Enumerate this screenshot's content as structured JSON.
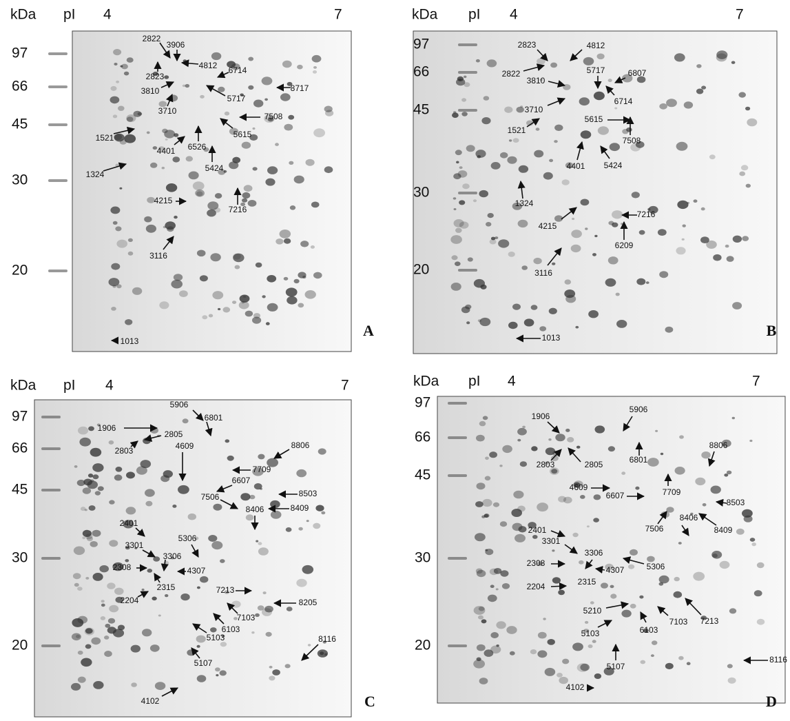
{
  "panels": [
    {
      "letter": "A",
      "header": {
        "unit": "kDa",
        "pi": "pI",
        "ph_low": "4",
        "ph_high": "7"
      },
      "mw": [
        "97",
        "66",
        "45",
        "30",
        "20"
      ],
      "spots": [
        "2822",
        "3906",
        "4812",
        "6714",
        "2823",
        "8717",
        "3810",
        "5717",
        "3710",
        "7508",
        "5615",
        "1521",
        "4401",
        "6526",
        "5424",
        "1324",
        "4215",
        "7216",
        "3116",
        "1013"
      ]
    },
    {
      "letter": "B",
      "header": {
        "unit": "kDa",
        "pi": "pI",
        "ph_low": "4",
        "ph_high": "7"
      },
      "mw": [
        "97",
        "66",
        "45",
        "30",
        "20"
      ],
      "spots": [
        "2823",
        "4812",
        "2822",
        "3810",
        "5717",
        "6807",
        "6714",
        "3710",
        "5615",
        "7508",
        "1521",
        "4401",
        "5424",
        "1324",
        "4215",
        "7216",
        "6209",
        "3116",
        "1013"
      ]
    },
    {
      "letter": "C",
      "header": {
        "unit": "kDa",
        "pi": "pI",
        "ph_low": "4",
        "ph_high": "7"
      },
      "mw": [
        "97",
        "66",
        "45",
        "30",
        "20"
      ],
      "spots": [
        "5906",
        "6801",
        "1906",
        "2805",
        "2803",
        "8806",
        "4609",
        "7709",
        "6607",
        "8503",
        "7506",
        "8406",
        "8409",
        "2401",
        "5306",
        "3301",
        "3306",
        "2308",
        "4307",
        "2315",
        "2204",
        "7213",
        "8205",
        "7103",
        "6103",
        "5103",
        "8116",
        "5107",
        "4102"
      ]
    },
    {
      "letter": "D",
      "header": {
        "unit": "kDa",
        "pi": "pI",
        "ph_low": "4",
        "ph_high": "7"
      },
      "mw": [
        "97",
        "66",
        "45",
        "30",
        "20"
      ],
      "spots": [
        "1906",
        "5906",
        "8806",
        "2803",
        "2805",
        "6801",
        "7709",
        "4609",
        "6607",
        "8503",
        "7506",
        "8406",
        "8409",
        "2401",
        "3301",
        "3306",
        "5306",
        "2308",
        "4307",
        "2315",
        "2204",
        "5210",
        "7213",
        "7103",
        "6103",
        "5103",
        "5107",
        "8116",
        "4102"
      ]
    }
  ]
}
